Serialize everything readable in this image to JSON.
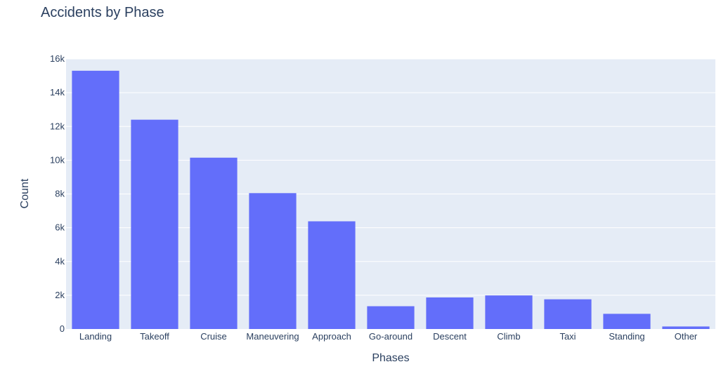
{
  "chart_data": {
    "type": "bar",
    "title": "Accidents by Phase",
    "xlabel": "Phases",
    "ylabel": "Count",
    "categories": [
      "Landing",
      "Takeoff",
      "Cruise",
      "Maneuvering",
      "Approach",
      "Go-around",
      "Descent",
      "Climb",
      "Taxi",
      "Standing",
      "Other"
    ],
    "values": [
      15300,
      12400,
      10150,
      8050,
      6380,
      1350,
      1870,
      1990,
      1760,
      900,
      150
    ],
    "ylim": [
      0,
      16000
    ],
    "yticks": [
      0,
      2000,
      4000,
      6000,
      8000,
      10000,
      12000,
      14000,
      16000
    ],
    "ytick_labels": [
      "0",
      "2k",
      "4k",
      "6k",
      "8k",
      "10k",
      "12k",
      "14k",
      "16k"
    ],
    "grid": true,
    "colors": {
      "bar": "#636efa",
      "plot_bg": "#e5ecf6",
      "grid": "#ffffff",
      "text": "#2a3f5f"
    }
  }
}
